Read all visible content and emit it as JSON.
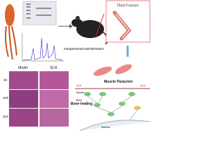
{
  "figure": {
    "intraperitoneal": "Intraperitoneal administration",
    "tibial_fracture": "Tibial Fracture",
    "muscle_paracrine": "Muscle Paracrine",
    "bone_healing": "Bone healing",
    "histology": {
      "columns": [
        "Model",
        "SCH"
      ],
      "rows": [
        "3d",
        "10d",
        "21d"
      ]
    },
    "pathway": {
      "left_label": "SCH",
      "right_label": "SCH",
      "muscle": "Muscle",
      "bone": "Bone",
      "nucleus": "Nucleus"
    }
  }
}
